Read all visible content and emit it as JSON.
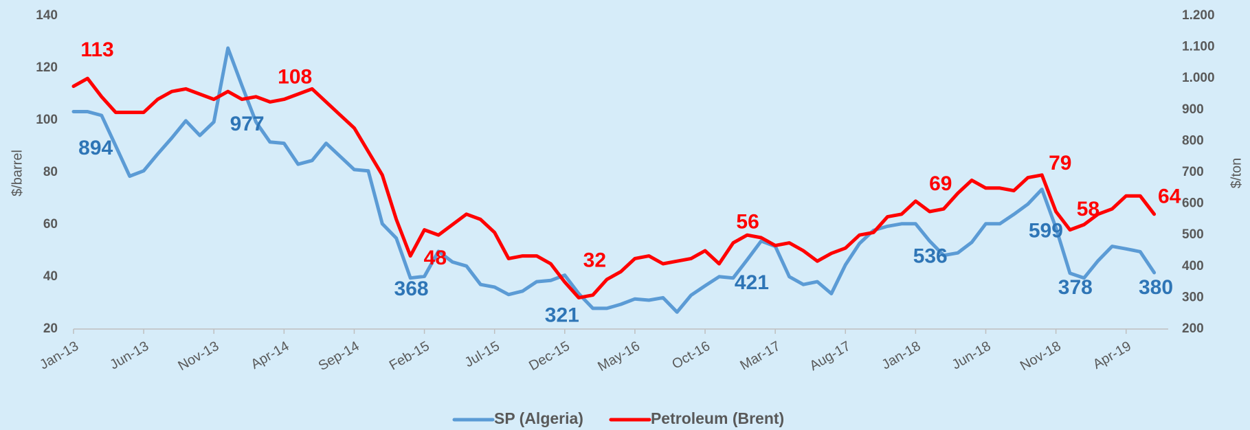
{
  "chart_data": {
    "type": "line",
    "ylabel": "$/barrel",
    "y2label": "$/ton",
    "categories": [
      "Jan-13",
      null,
      null,
      null,
      null,
      "Jun-13",
      null,
      null,
      null,
      null,
      "Nov-13",
      null,
      null,
      null,
      null,
      "Apr-14",
      null,
      null,
      null,
      null,
      "Sep-14",
      null,
      null,
      null,
      null,
      "Feb-15",
      null,
      null,
      null,
      null,
      "Jul-15",
      null,
      null,
      null,
      null,
      "Dec-15",
      null,
      null,
      null,
      null,
      "May-16",
      null,
      null,
      null,
      null,
      "Oct-16",
      null,
      null,
      null,
      null,
      "Mar-17",
      null,
      null,
      null,
      null,
      "Aug-17",
      null,
      null,
      null,
      null,
      "Jan-18",
      null,
      null,
      null,
      null,
      "Jun-18",
      null,
      null,
      null,
      null,
      "Nov-18",
      null,
      null,
      null,
      null,
      "Apr-19",
      null,
      null
    ],
    "series": [
      {
        "name": "SP (Algeria)",
        "color": "#5b9bd5",
        "label_color": "#2e75b6",
        "axis": "y2",
        "values": [
          894,
          894,
          882,
          785,
          688,
          705,
          759,
          810,
          865,
          818,
          861,
          1097,
          977,
          861,
          797,
          793,
          726,
          738,
          793,
          751,
          709,
          705,
          536,
          490,
          363,
          368,
          448,
          414,
          401,
          342,
          334,
          310,
          321,
          351,
          355,
          372,
          313,
          266,
          266,
          279,
          296,
          292,
          300,
          254,
          308,
          338,
          367,
          363,
          421,
          481,
          464,
          367,
          342,
          351,
          313,
          405,
          473,
          515,
          528,
          536,
          536,
          481,
          435,
          443,
          477,
          536,
          536,
          566,
          599,
          646,
          523,
          378,
          363,
          418,
          464,
          456,
          447,
          380
        ],
        "value_labels": [
          "894",
          null,
          null,
          null,
          null,
          null,
          null,
          null,
          null,
          null,
          null,
          null,
          "977",
          null,
          null,
          null,
          null,
          null,
          null,
          null,
          null,
          null,
          null,
          null,
          null,
          "368",
          null,
          null,
          null,
          null,
          null,
          null,
          "321",
          null,
          null,
          null,
          null,
          null,
          null,
          null,
          null,
          null,
          null,
          null,
          null,
          null,
          null,
          null,
          "421",
          null,
          null,
          null,
          null,
          null,
          null,
          null,
          null,
          null,
          null,
          null,
          "536",
          null,
          null,
          null,
          null,
          null,
          null,
          null,
          "599",
          null,
          null,
          "378",
          null,
          null,
          null,
          null,
          null,
          "380"
        ]
      },
      {
        "name": "Petroleum (Brent)",
        "color": "#ff0000",
        "label_color": "#ff0000",
        "axis": "y",
        "values": [
          113,
          116,
          109,
          103,
          103,
          103,
          108,
          111,
          112,
          110,
          108,
          111,
          108,
          109,
          107,
          108,
          110,
          112,
          107,
          102,
          97,
          88,
          79,
          62,
          48,
          58,
          56,
          60,
          64,
          62,
          57,
          47,
          48,
          48,
          45,
          38,
          32,
          33,
          39,
          42,
          47,
          48,
          45,
          46,
          47,
          50,
          45,
          53,
          56,
          55,
          52,
          53,
          50,
          46,
          49,
          51,
          56,
          57,
          63,
          64,
          69,
          65,
          66,
          72,
          77,
          74,
          74,
          73,
          78,
          79,
          65,
          58,
          60,
          64,
          66,
          71,
          71,
          64
        ],
        "value_labels": [
          "113",
          null,
          null,
          null,
          null,
          null,
          null,
          null,
          null,
          null,
          null,
          null,
          null,
          null,
          null,
          "108",
          null,
          null,
          null,
          null,
          null,
          null,
          null,
          null,
          "48",
          null,
          null,
          null,
          null,
          null,
          null,
          null,
          null,
          null,
          null,
          null,
          "32",
          null,
          null,
          null,
          null,
          null,
          null,
          null,
          null,
          null,
          null,
          null,
          "56",
          null,
          null,
          null,
          null,
          null,
          null,
          null,
          null,
          null,
          null,
          null,
          "69",
          null,
          null,
          null,
          null,
          null,
          null,
          null,
          null,
          "79",
          null,
          "58",
          null,
          null,
          null,
          null,
          null,
          "64"
        ]
      }
    ],
    "ylim": [
      20,
      140
    ],
    "yticks": [
      20,
      40,
      60,
      80,
      100,
      120,
      140
    ],
    "y2lim": [
      200,
      1200
    ],
    "y2ticks": [
      200,
      300,
      400,
      500,
      600,
      700,
      800,
      900,
      {
        "value": 1000,
        "label": "1.000"
      },
      {
        "value": 1100,
        "label": "1.100"
      },
      {
        "value": 1200,
        "label": "1.200"
      }
    ],
    "grid": false,
    "legend": "bottom"
  }
}
